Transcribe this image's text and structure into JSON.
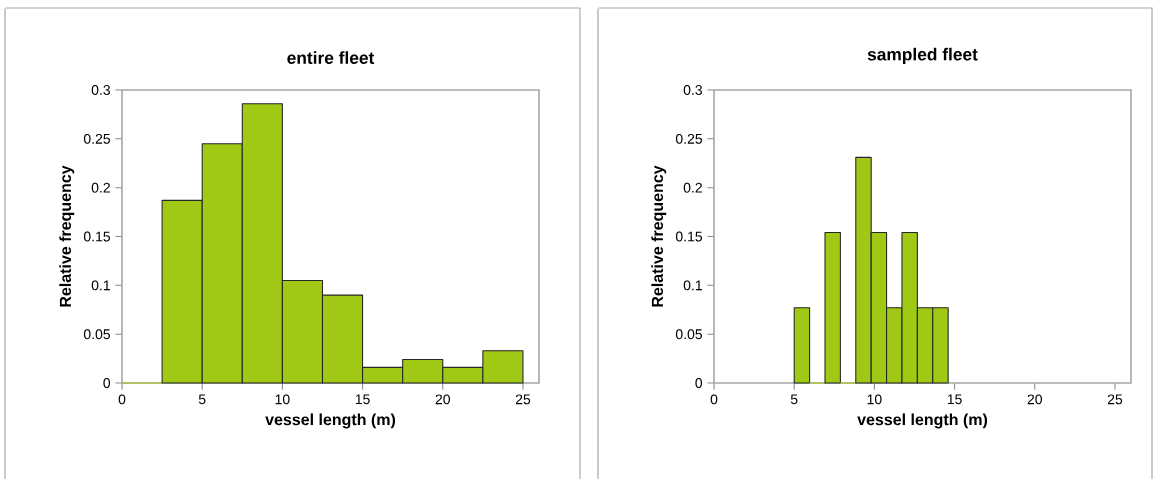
{
  "chart_data": [
    {
      "type": "histogram",
      "title": "entire fleet",
      "xlabel": "vessel length (m)",
      "ylabel": "Relative frequency",
      "bins": [
        0,
        2.5,
        5,
        7.5,
        10,
        12.5,
        15,
        17.5,
        20,
        22.5,
        25
      ],
      "values": [
        0,
        0.187,
        0.245,
        0.286,
        0.105,
        0.09,
        0.016,
        0.024,
        0.016,
        0.033
      ],
      "color": "#9fc914",
      "xlim": [
        0,
        26
      ],
      "ylim": [
        0,
        0.3
      ],
      "xticks": [
        0,
        5,
        10,
        15,
        20,
        25
      ],
      "yticks": [
        0,
        0.05,
        0.1,
        0.15,
        0.2,
        0.25,
        0.3
      ]
    },
    {
      "type": "histogram",
      "title": "sampled fleet",
      "xlabel": "vessel length (m)",
      "ylabel": "Relative frequency",
      "bins": [
        5,
        5.96,
        6.92,
        7.88,
        8.84,
        9.8,
        10.76,
        11.72,
        12.68,
        13.64,
        14.6
      ],
      "values": [
        0.077,
        0,
        0.154,
        0,
        0.231,
        0.154,
        0.077,
        0.154,
        0.077,
        0.077
      ],
      "color": "#9fc914",
      "xlim": [
        0,
        26
      ],
      "ylim": [
        0,
        0.3
      ],
      "xticks": [
        0,
        5,
        10,
        15,
        20,
        25
      ],
      "yticks": [
        0,
        0.05,
        0.1,
        0.15,
        0.2,
        0.25,
        0.3
      ]
    }
  ]
}
